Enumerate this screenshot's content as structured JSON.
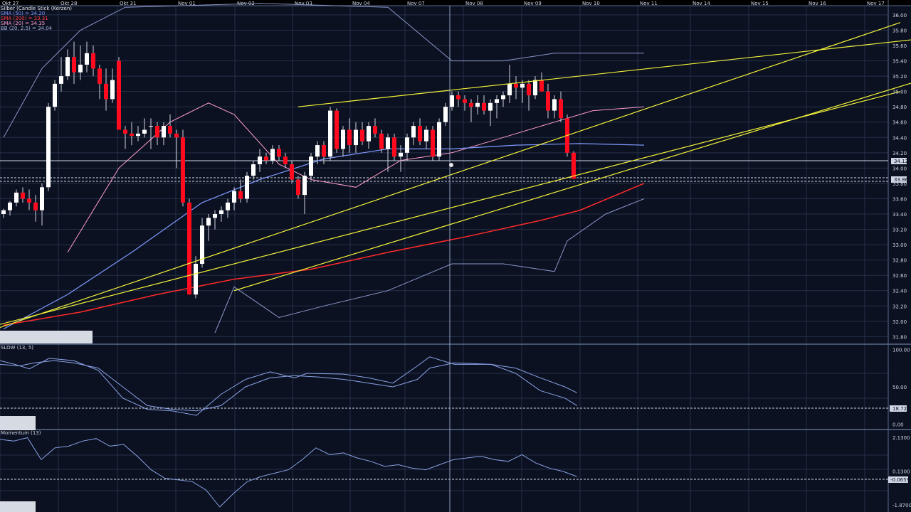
{
  "colors": {
    "background": "#0b1120",
    "grid": "#25304a",
    "frame": "#5a6a8e",
    "candle_up": "#ffffff",
    "candle_down": "#ff0a1e",
    "wick": "#d0d4e0",
    "bollinger": "#8a96c8",
    "sma_50": "#7f99ff",
    "sma_200": "#ff2a2a",
    "sma_20": "#ff9ed0",
    "trendline": "#f2f23a",
    "osc_line": "#8aa2e6",
    "label_text": "#cfd6e6"
  },
  "legend": {
    "title": "Silber (Candle Stick (Kerzen)",
    "sma50": "SMA (50) = 34.20",
    "sma200": "SMA (200) = 33.31",
    "sma20": "SMA (20) = 34.35",
    "bb": "BB (20, 2.5) = 34.04"
  },
  "stoch_label": "SLOW (13, 5)",
  "momentum_label": "Momentum (13)",
  "price_tag_primary": "34.12",
  "price_tag_secondary": "33.86",
  "stoch_tag": "18.72",
  "momentum_tag": "-0.0659",
  "chart_data": [
    {
      "type": "candlestick",
      "title": "Silber (Candle Stick (Kerzen)",
      "x_labels": [
        "Okt 27",
        "Okt 28",
        "Okt 31",
        "Nov 01",
        "Nov 02",
        "Nov 03",
        "Nov 04",
        "Nov 07",
        "Nov 08",
        "Nov 09",
        "Nov 10",
        "Nov 11",
        "Nov 14",
        "Nov 15",
        "Nov 16",
        "Nov 17"
      ],
      "y_ticks": [
        "36.00",
        "35.80",
        "35.60",
        "35.40",
        "35.20",
        "35.00",
        "34.80",
        "34.60",
        "34.40",
        "34.20",
        "34.00",
        "33.80",
        "33.60",
        "33.40",
        "33.20",
        "33.00",
        "32.80",
        "32.60",
        "32.40",
        "32.20",
        "32.00",
        "31.80"
      ],
      "ylim": [
        31.72,
        36.12
      ],
      "overlays": [
        "SMA (50)",
        "SMA (200)",
        "SMA (20)",
        "BB (20, 2.5)"
      ],
      "candles": [
        [
          33.4,
          33.47,
          33.35,
          33.45
        ],
        [
          33.45,
          33.57,
          33.38,
          33.55
        ],
        [
          33.55,
          33.72,
          33.5,
          33.68
        ],
        [
          33.68,
          33.75,
          33.55,
          33.6
        ],
        [
          33.6,
          33.72,
          33.45,
          33.55
        ],
        [
          33.55,
          33.65,
          33.3,
          33.45
        ],
        [
          33.45,
          33.8,
          33.25,
          33.75
        ],
        [
          33.75,
          34.85,
          33.7,
          34.8
        ],
        [
          34.8,
          35.15,
          34.75,
          35.1
        ],
        [
          35.1,
          35.45,
          35.0,
          35.2
        ],
        [
          35.2,
          35.55,
          35.15,
          35.45
        ],
        [
          35.45,
          35.65,
          35.1,
          35.25
        ],
        [
          35.25,
          35.6,
          35.15,
          35.35
        ],
        [
          35.35,
          35.65,
          35.25,
          35.5
        ],
        [
          35.5,
          35.6,
          35.2,
          35.3
        ],
        [
          35.3,
          35.35,
          34.9,
          35.1
        ],
        [
          35.1,
          35.3,
          34.75,
          34.9
        ],
        [
          34.9,
          35.3,
          34.85,
          35.15
        ],
        [
          35.4,
          35.45,
          34.5,
          34.5
        ],
        [
          34.5,
          34.55,
          34.25,
          34.45
        ],
        [
          34.45,
          34.6,
          34.3,
          34.42
        ],
        [
          34.42,
          34.55,
          34.35,
          34.45
        ],
        [
          34.45,
          34.65,
          34.4,
          34.5
        ],
        [
          34.55,
          34.65,
          34.25,
          34.55
        ],
        [
          34.55,
          34.6,
          34.3,
          34.4
        ],
        [
          34.4,
          34.6,
          34.3,
          34.55
        ],
        [
          34.55,
          34.7,
          34.4,
          34.45
        ],
        [
          34.45,
          34.5,
          34.0,
          34.4
        ],
        [
          34.4,
          34.5,
          33.5,
          33.55
        ],
        [
          33.55,
          33.6,
          32.35,
          32.35
        ],
        [
          32.35,
          32.85,
          32.3,
          32.75
        ],
        [
          32.75,
          33.35,
          32.7,
          33.25
        ],
        [
          33.25,
          33.4,
          33.05,
          33.35
        ],
        [
          33.35,
          33.45,
          33.2,
          33.4
        ],
        [
          33.4,
          33.5,
          33.3,
          33.45
        ],
        [
          33.45,
          33.6,
          33.35,
          33.55
        ],
        [
          33.55,
          33.75,
          33.45,
          33.7
        ],
        [
          33.7,
          33.85,
          33.55,
          33.6
        ],
        [
          33.6,
          33.95,
          33.55,
          33.9
        ],
        [
          33.9,
          34.1,
          33.85,
          34.05
        ],
        [
          34.05,
          34.25,
          33.95,
          34.15
        ],
        [
          34.15,
          34.2,
          34.05,
          34.1
        ],
        [
          34.1,
          34.3,
          34.05,
          34.25
        ],
        [
          34.25,
          34.3,
          34.1,
          34.15
        ],
        [
          34.15,
          34.2,
          34.0,
          34.05
        ],
        [
          34.05,
          34.1,
          33.8,
          33.85
        ],
        [
          33.85,
          33.9,
          33.6,
          33.65
        ],
        [
          33.65,
          33.95,
          33.4,
          33.9
        ],
        [
          33.9,
          34.2,
          33.85,
          34.15
        ],
        [
          34.15,
          34.35,
          34.05,
          34.3
        ],
        [
          34.3,
          34.35,
          34.05,
          34.15
        ],
        [
          34.15,
          34.8,
          34.1,
          34.75
        ],
        [
          34.75,
          34.78,
          34.2,
          34.25
        ],
        [
          34.25,
          34.55,
          34.15,
          34.5
        ],
        [
          34.5,
          34.65,
          34.2,
          34.3
        ],
        [
          34.3,
          34.6,
          34.2,
          34.5
        ],
        [
          34.5,
          34.6,
          34.3,
          34.35
        ],
        [
          34.35,
          34.6,
          34.25,
          34.55
        ],
        [
          34.55,
          34.65,
          34.4,
          34.45
        ],
        [
          34.45,
          34.5,
          34.2,
          34.25
        ],
        [
          34.25,
          34.45,
          33.95,
          34.4
        ],
        [
          34.4,
          34.45,
          34.1,
          34.15
        ],
        [
          34.15,
          34.3,
          33.95,
          34.2
        ],
        [
          34.2,
          34.45,
          34.1,
          34.4
        ],
        [
          34.4,
          34.6,
          34.3,
          34.55
        ],
        [
          34.55,
          34.65,
          34.3,
          34.35
        ],
        [
          34.35,
          34.55,
          34.25,
          34.5
        ],
        [
          34.5,
          34.55,
          34.1,
          34.15
        ],
        [
          34.15,
          34.65,
          34.1,
          34.6
        ],
        [
          34.6,
          34.85,
          34.55,
          34.8
        ],
        [
          34.8,
          35.0,
          34.75,
          34.95
        ],
        [
          34.95,
          35.0,
          34.8,
          34.9
        ],
        [
          34.9,
          34.95,
          34.75,
          34.85
        ],
        [
          34.85,
          34.9,
          34.6,
          34.8
        ],
        [
          34.8,
          34.95,
          34.7,
          34.85
        ],
        [
          34.85,
          34.95,
          34.7,
          34.75
        ],
        [
          34.75,
          34.9,
          34.55,
          34.85
        ],
        [
          34.85,
          34.95,
          34.65,
          34.9
        ],
        [
          34.9,
          35.0,
          34.8,
          34.95
        ],
        [
          34.95,
          35.35,
          34.85,
          35.1
        ],
        [
          35.1,
          35.2,
          34.9,
          35.05
        ],
        [
          35.05,
          35.15,
          34.85,
          35.1
        ],
        [
          35.1,
          35.15,
          34.75,
          34.95
        ],
        [
          34.95,
          35.2,
          34.9,
          35.15
        ],
        [
          35.15,
          35.25,
          35.0,
          35.0
        ],
        [
          35.0,
          35.1,
          34.65,
          34.75
        ],
        [
          34.75,
          34.95,
          34.65,
          34.9
        ],
        [
          34.9,
          35.0,
          34.6,
          34.65
        ],
        [
          34.65,
          34.7,
          34.15,
          34.2
        ],
        [
          34.2,
          34.22,
          33.86,
          33.86
        ]
      ],
      "sma200": [
        [
          0,
          31.95
        ],
        [
          12,
          32.12
        ],
        [
          24,
          32.35
        ],
        [
          36,
          32.55
        ],
        [
          48,
          32.68
        ],
        [
          60,
          32.9
        ],
        [
          72,
          33.1
        ],
        [
          84,
          33.32
        ],
        [
          90,
          33.45
        ],
        [
          100,
          33.8
        ]
      ],
      "sma50": [
        [
          0,
          31.9
        ],
        [
          10,
          32.35
        ],
        [
          20,
          32.9
        ],
        [
          31,
          33.55
        ],
        [
          40,
          33.85
        ],
        [
          50,
          34.12
        ],
        [
          60,
          34.25
        ],
        [
          70,
          34.25
        ],
        [
          80,
          34.3
        ],
        [
          90,
          34.32
        ],
        [
          100,
          34.3
        ]
      ],
      "sma20": [
        [
          10,
          32.9
        ],
        [
          18,
          34.0
        ],
        [
          26,
          34.6
        ],
        [
          32,
          34.85
        ],
        [
          36,
          34.7
        ],
        [
          43,
          34.05
        ],
        [
          48,
          33.85
        ],
        [
          55,
          33.75
        ],
        [
          62,
          34.1
        ],
        [
          70,
          34.2
        ],
        [
          78,
          34.4
        ],
        [
          86,
          34.6
        ],
        [
          92,
          34.75
        ],
        [
          100,
          34.8
        ]
      ],
      "bb_upper": [
        [
          0,
          34.4
        ],
        [
          6,
          35.3
        ],
        [
          12,
          35.8
        ],
        [
          19,
          36.1
        ],
        [
          40,
          36.15
        ],
        [
          60,
          36.1
        ],
        [
          70,
          35.4
        ],
        [
          78,
          35.4
        ],
        [
          86,
          35.5
        ],
        [
          100,
          35.5
        ]
      ],
      "bb_lower": [
        [
          33,
          31.85
        ],
        [
          36,
          32.45
        ],
        [
          43,
          32.05
        ],
        [
          50,
          32.2
        ],
        [
          60,
          32.4
        ],
        [
          70,
          32.75
        ],
        [
          78,
          32.75
        ],
        [
          86,
          32.65
        ],
        [
          88,
          33.05
        ],
        [
          94,
          33.4
        ],
        [
          100,
          33.6
        ]
      ],
      "trendlines": [
        [
          [
            -3,
            31.85
          ],
          [
            140,
            35.9
          ]
        ],
        [
          [
            46,
            34.8
          ],
          [
            150,
            35.75
          ]
        ],
        [
          [
            36,
            32.4
          ],
          [
            155,
            35.45
          ]
        ],
        [
          [
            -1,
            31.95
          ],
          [
            140,
            35.0
          ]
        ]
      ]
    },
    {
      "type": "line",
      "title": "SLOW (13, 5)",
      "y_ticks": [
        "100.00",
        "50.00",
        "0.00"
      ],
      "ylim": [
        -5,
        105
      ],
      "series": [
        {
          "values": [
            [
              0,
              85
            ],
            [
              6,
              80
            ],
            [
              12,
              74
            ],
            [
              20,
              88
            ],
            [
              30,
              85
            ],
            [
              40,
              72
            ],
            [
              50,
              35
            ],
            [
              60,
              20
            ],
            [
              70,
              18
            ],
            [
              80,
              12
            ],
            [
              90,
              40
            ],
            [
              100,
              60
            ],
            [
              110,
              70
            ],
            [
              120,
              62
            ],
            [
              125,
              68
            ],
            [
              140,
              67
            ],
            [
              150,
              62
            ],
            [
              160,
              55
            ],
            [
              170,
              78
            ],
            [
              175,
              90
            ],
            [
              185,
              80
            ],
            [
              200,
              80
            ],
            [
              210,
              68
            ],
            [
              220,
              45
            ],
            [
              230,
              35
            ],
            [
              235,
              25
            ]
          ]
        },
        {
          "values": [
            [
              0,
              80
            ],
            [
              8,
              78
            ],
            [
              14,
              82
            ],
            [
              22,
              85
            ],
            [
              30,
              82
            ],
            [
              40,
              75
            ],
            [
              50,
              50
            ],
            [
              60,
              25
            ],
            [
              70,
              20
            ],
            [
              80,
              18
            ],
            [
              90,
              25
            ],
            [
              100,
              50
            ],
            [
              110,
              62
            ],
            [
              120,
              65
            ],
            [
              130,
              63
            ],
            [
              140,
              60
            ],
            [
              150,
              55
            ],
            [
              160,
              50
            ],
            [
              170,
              60
            ],
            [
              175,
              75
            ],
            [
              185,
              82
            ],
            [
              200,
              80
            ],
            [
              210,
              75
            ],
            [
              220,
              62
            ],
            [
              230,
              50
            ],
            [
              235,
              42
            ]
          ]
        }
      ]
    },
    {
      "type": "line",
      "title": "Momentum (13)",
      "y_ticks": [
        "2.1300",
        "0.1300",
        "-1.8700"
      ],
      "ylim": [
        -2.3,
        2.5
      ],
      "series": [
        {
          "values": [
            [
              0,
              2.0
            ],
            [
              5,
              1.9
            ],
            [
              10,
              2.1
            ],
            [
              15,
              0.8
            ],
            [
              20,
              1.5
            ],
            [
              25,
              1.6
            ],
            [
              30,
              1.9
            ],
            [
              35,
              2.05
            ],
            [
              40,
              1.6
            ],
            [
              45,
              1.7
            ],
            [
              50,
              1.0
            ],
            [
              55,
              0.2
            ],
            [
              60,
              -0.3
            ],
            [
              65,
              -0.4
            ],
            [
              70,
              -0.5
            ],
            [
              75,
              -1.0
            ],
            [
              80,
              -2.0
            ],
            [
              85,
              -1.2
            ],
            [
              90,
              -0.5
            ],
            [
              95,
              -0.2
            ],
            [
              100,
              0.0
            ],
            [
              105,
              0.2
            ],
            [
              110,
              0.8
            ],
            [
              115,
              1.5
            ],
            [
              120,
              1.1
            ],
            [
              125,
              1.2
            ],
            [
              130,
              0.9
            ],
            [
              135,
              0.7
            ],
            [
              140,
              0.4
            ],
            [
              145,
              0.5
            ],
            [
              150,
              0.3
            ],
            [
              155,
              0.2
            ],
            [
              160,
              0.5
            ],
            [
              165,
              0.8
            ],
            [
              170,
              0.9
            ],
            [
              175,
              1.0
            ],
            [
              180,
              0.8
            ],
            [
              185,
              0.7
            ],
            [
              190,
              1.1
            ],
            [
              195,
              0.6
            ],
            [
              200,
              0.3
            ],
            [
              205,
              0.1
            ],
            [
              210,
              -0.2
            ]
          ]
        }
      ]
    }
  ]
}
